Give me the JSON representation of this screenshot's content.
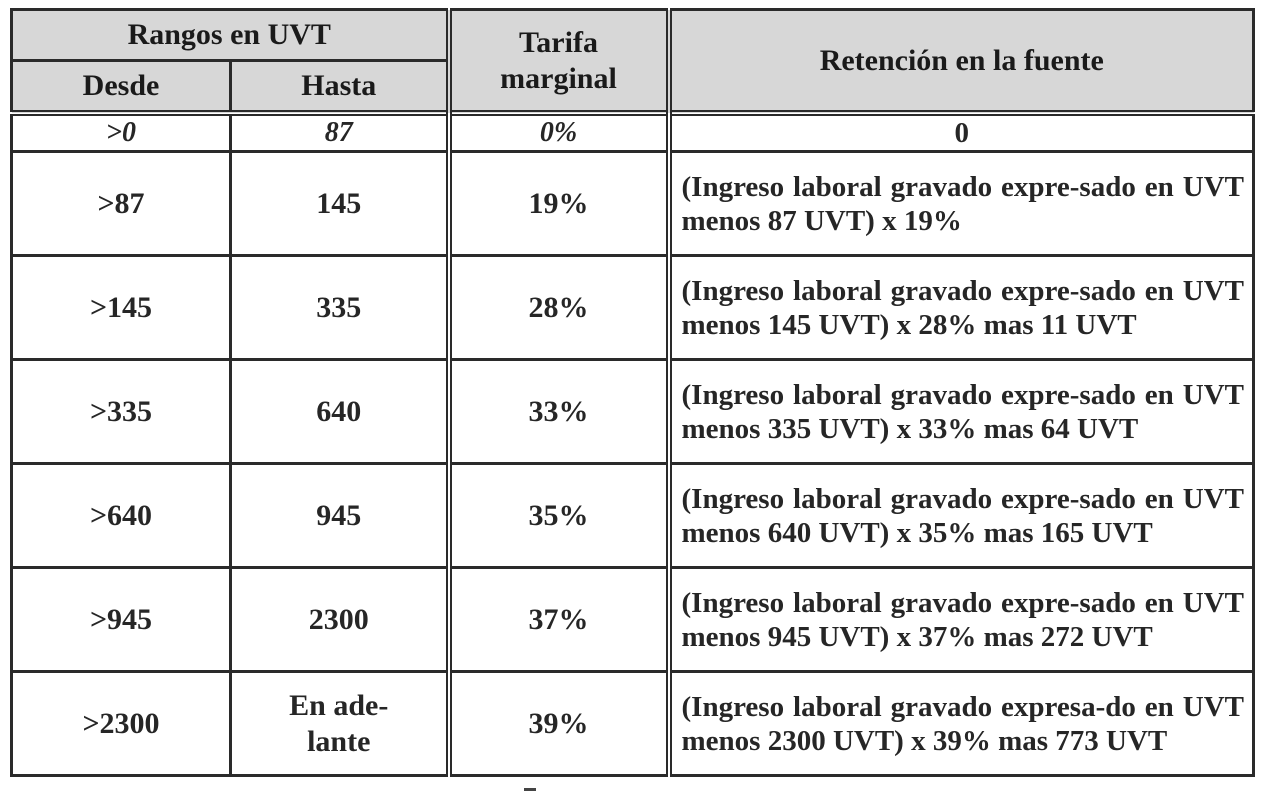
{
  "header": {
    "group_label": "Rangos en UVT",
    "desde_label": "Desde",
    "hasta_label": "Hasta",
    "tarifa_label": "Tarifa marginal",
    "retencion_label": "Retención en la fuente"
  },
  "rows": [
    {
      "desde": ">0",
      "hasta": "87",
      "tarifa": "0%",
      "retencion": "0"
    },
    {
      "desde": ">87",
      "hasta": "145",
      "tarifa": "19%",
      "retencion": "(Ingreso laboral gravado expre-sado en UVT menos 87 UVT) x 19%"
    },
    {
      "desde": ">145",
      "hasta": "335",
      "tarifa": "28%",
      "retencion": "(Ingreso laboral gravado expre-sado en UVT menos 145 UVT) x 28% mas 11 UVT"
    },
    {
      "desde": ">335",
      "hasta": "640",
      "tarifa": "33%",
      "retencion": "(Ingreso laboral gravado expre-sado en UVT menos 335 UVT) x 33% mas 64 UVT"
    },
    {
      "desde": ">640",
      "hasta": "945",
      "tarifa": "35%",
      "retencion": "(Ingreso laboral gravado expre-sado en UVT menos 640 UVT) x 35% mas 165 UVT"
    },
    {
      "desde": ">945",
      "hasta": "2300",
      "tarifa": "37%",
      "retencion": "(Ingreso laboral gravado expre-sado en UVT menos 945 UVT) x 37% mas 272 UVT"
    },
    {
      "desde": ">2300",
      "hasta": "En ade-lante",
      "tarifa": "39%",
      "retencion": "(Ingreso laboral gravado expresa-do en UVT menos 2300 UVT) x 39% mas 773 UVT"
    }
  ]
}
